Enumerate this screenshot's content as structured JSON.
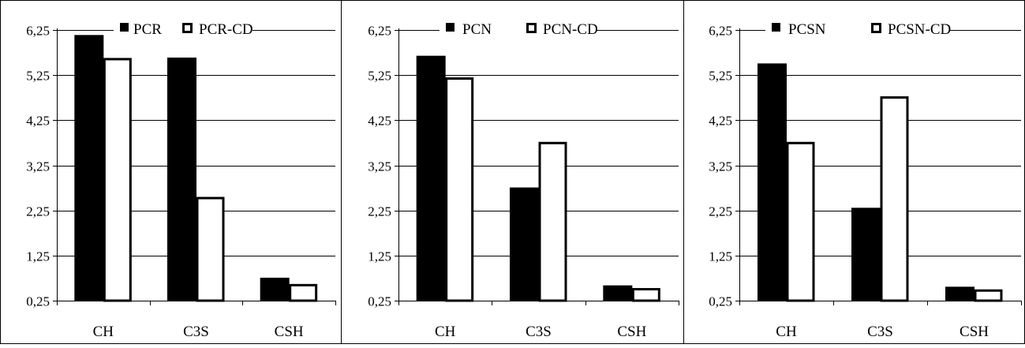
{
  "colors": {
    "filled": "#000000",
    "hollow": "#ffffff",
    "stroke": "#000000",
    "grid": "#000000"
  },
  "chart_data": [
    {
      "type": "bar",
      "categories": [
        "CH",
        "C3S",
        "CSH"
      ],
      "yticks": [
        "0,25",
        "1,25",
        "2,25",
        "3,25",
        "4,25",
        "5,25",
        "6,25"
      ],
      "ylim": [
        0.25,
        6.25
      ],
      "grid": true,
      "legend": "top",
      "series": [
        {
          "name": "PCR",
          "style": "filled",
          "values": [
            6.13,
            5.63,
            0.75
          ]
        },
        {
          "name": "PCR-CD",
          "style": "hollow",
          "values": [
            5.63,
            2.55,
            0.62
          ]
        }
      ]
    },
    {
      "type": "bar",
      "categories": [
        "CH",
        "C3S",
        "CSH"
      ],
      "yticks": [
        "0,25",
        "1,25",
        "2,25",
        "3,25",
        "4,25",
        "5,25",
        "6,25"
      ],
      "ylim": [
        0.25,
        6.25
      ],
      "grid": true,
      "legend": "top",
      "series": [
        {
          "name": "PCN",
          "style": "filled",
          "values": [
            5.67,
            2.75,
            0.58
          ]
        },
        {
          "name": "PCN-CD",
          "style": "hollow",
          "values": [
            5.2,
            3.77,
            0.53
          ]
        }
      ]
    },
    {
      "type": "bar",
      "categories": [
        "CH",
        "C3S",
        "CSH"
      ],
      "yticks": [
        "0,25",
        "1,25",
        "2,25",
        "3,25",
        "4,25",
        "5,25",
        "6,25"
      ],
      "ylim": [
        0.25,
        6.25
      ],
      "grid": true,
      "legend": "top",
      "series": [
        {
          "name": "PCSN",
          "style": "filled",
          "values": [
            5.5,
            2.3,
            0.55
          ]
        },
        {
          "name": "PCSN-CD",
          "style": "hollow",
          "values": [
            3.77,
            4.78,
            0.5
          ]
        }
      ]
    }
  ]
}
